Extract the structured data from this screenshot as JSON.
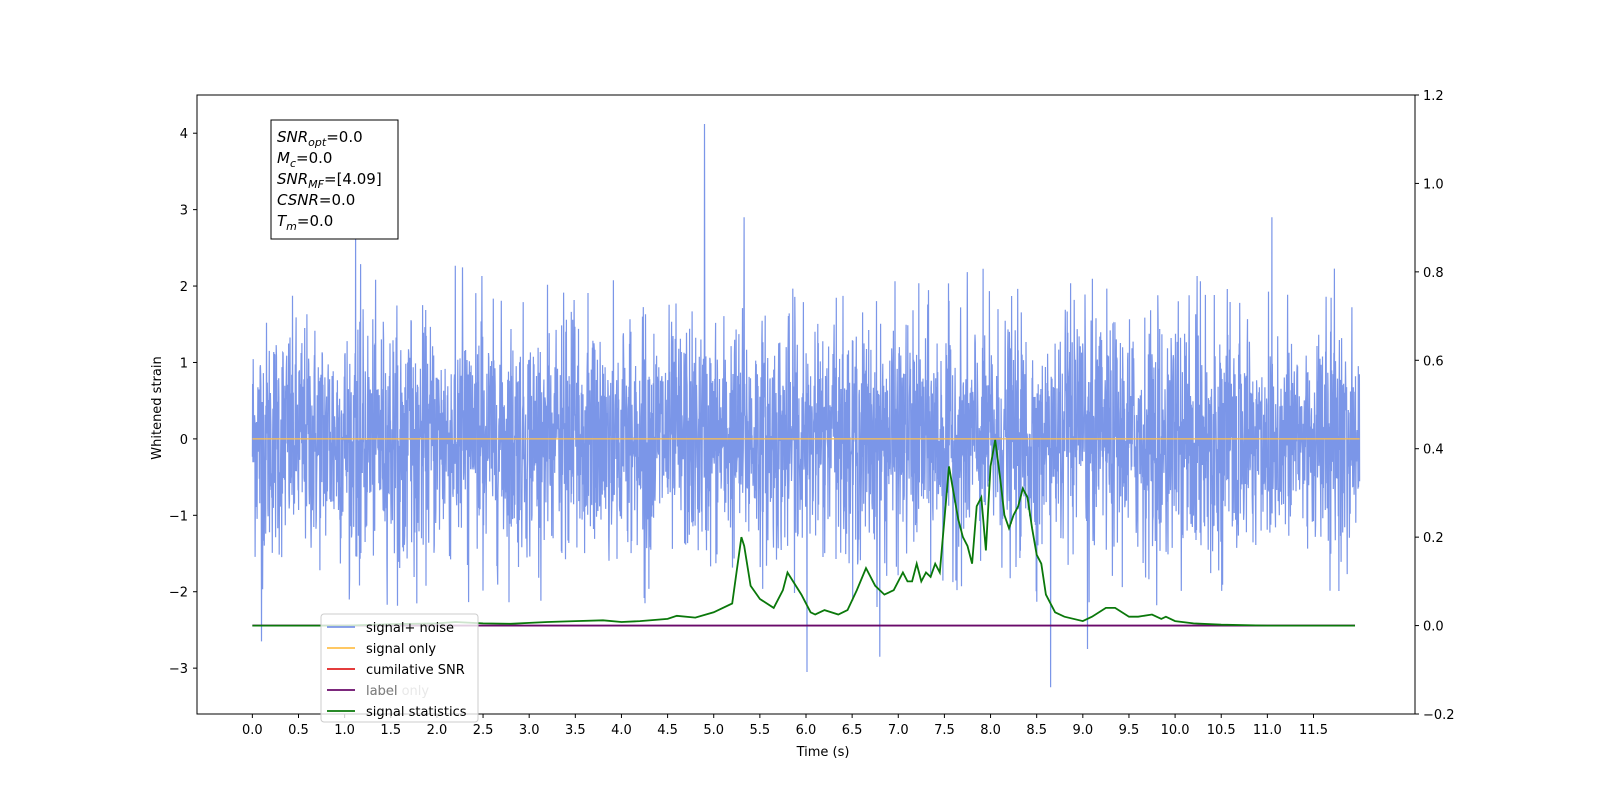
{
  "chart_data": {
    "type": "line",
    "xlabel": "Time (s)",
    "ylabel": "Whitened strain",
    "xlim": [
      -0.6,
      12.6
    ],
    "ylim": [
      -3.6,
      4.5
    ],
    "y2lim": [
      -0.2,
      1.2
    ],
    "xticks": [
      "0.0",
      "0.5",
      "1.0",
      "1.5",
      "2.0",
      "2.5",
      "3.0",
      "3.5",
      "4.0",
      "4.5",
      "5.0",
      "5.5",
      "6.0",
      "6.5",
      "7.0",
      "7.5",
      "8.0",
      "8.5",
      "9.0",
      "9.5",
      "10.0",
      "10.5",
      "11.0",
      "11.5"
    ],
    "yticks": [
      "−3",
      "−2",
      "−1",
      "0",
      "1",
      "2",
      "3",
      "4"
    ],
    "y2ticks": [
      "−0.2",
      "0.0",
      "0.2",
      "0.4",
      "0.6",
      "0.8",
      "1.0",
      "1.2"
    ],
    "colors": {
      "noise": "#7b96e8",
      "signal_only": "#ffc04d",
      "cumulative": "#e02020",
      "label": "#6a0a6a",
      "statistics": "#0a780a"
    },
    "noise": {
      "x_range": [
        0.0,
        12.0
      ],
      "rms": 0.75,
      "typical_max": 2.3,
      "typical_min": -2.2,
      "spikes": [
        [
          4.9,
          4.12
        ],
        [
          1.12,
          2.75
        ],
        [
          5.33,
          2.9
        ],
        [
          11.05,
          2.9
        ],
        [
          6.01,
          -3.05
        ],
        [
          8.65,
          -3.25
        ],
        [
          6.8,
          -2.85
        ],
        [
          9.05,
          -2.75
        ],
        [
          0.1,
          -2.65
        ]
      ]
    },
    "signal_only": {
      "x": [
        0.0,
        12.0
      ],
      "y": [
        0.0,
        0.0
      ]
    },
    "label": {
      "x": [
        0.0,
        11.95
      ],
      "y": [
        0.0,
        0.0
      ]
    },
    "statistics": {
      "x": [
        0.0,
        0.5,
        1.0,
        1.5,
        2.0,
        2.2,
        2.5,
        2.8,
        3.0,
        3.2,
        3.5,
        3.8,
        4.0,
        4.2,
        4.5,
        4.6,
        4.8,
        5.0,
        5.2,
        5.3,
        5.33,
        5.4,
        5.5,
        5.65,
        5.75,
        5.8,
        5.95,
        6.05,
        6.1,
        6.2,
        6.35,
        6.45,
        6.55,
        6.65,
        6.75,
        6.85,
        6.95,
        7.05,
        7.1,
        7.15,
        7.2,
        7.25,
        7.3,
        7.35,
        7.4,
        7.45,
        7.5,
        7.55,
        7.6,
        7.65,
        7.7,
        7.75,
        7.8,
        7.85,
        7.9,
        7.95,
        8.0,
        8.05,
        8.1,
        8.15,
        8.2,
        8.25,
        8.3,
        8.35,
        8.4,
        8.45,
        8.5,
        8.55,
        8.6,
        8.7,
        8.8,
        9.0,
        9.1,
        9.25,
        9.35,
        9.5,
        9.6,
        9.75,
        9.85,
        9.9,
        10.0,
        10.2,
        10.5,
        11.0,
        11.5,
        11.95
      ],
      "y": [
        0.0,
        0.0,
        0.0,
        0.003,
        0.005,
        0.008,
        0.005,
        0.004,
        0.006,
        0.008,
        0.01,
        0.012,
        0.008,
        0.01,
        0.015,
        0.022,
        0.018,
        0.03,
        0.05,
        0.2,
        0.18,
        0.09,
        0.06,
        0.04,
        0.08,
        0.12,
        0.07,
        0.03,
        0.025,
        0.035,
        0.025,
        0.035,
        0.08,
        0.13,
        0.09,
        0.07,
        0.08,
        0.12,
        0.1,
        0.1,
        0.14,
        0.1,
        0.12,
        0.11,
        0.14,
        0.12,
        0.24,
        0.36,
        0.3,
        0.24,
        0.2,
        0.18,
        0.14,
        0.27,
        0.29,
        0.17,
        0.36,
        0.42,
        0.34,
        0.25,
        0.22,
        0.25,
        0.27,
        0.31,
        0.29,
        0.22,
        0.16,
        0.14,
        0.07,
        0.03,
        0.02,
        0.01,
        0.02,
        0.04,
        0.04,
        0.02,
        0.02,
        0.025,
        0.015,
        0.02,
        0.01,
        0.005,
        0.002,
        0.0,
        0.0,
        0.0
      ]
    },
    "infobox": [
      {
        "sym": "SNR",
        "sub": "opt",
        "val": "=0.0"
      },
      {
        "sym": "M",
        "sub": "c",
        "val": "=0.0"
      },
      {
        "sym": "SNR",
        "sub": "MF",
        "val": "=[4.09]"
      },
      {
        "sym": "CSNR",
        "sub": "",
        "val": "=0.0"
      },
      {
        "sym": "T",
        "sub": "m",
        "val": "=0.0"
      }
    ],
    "legend": {
      "placement": "lower-left",
      "entries": [
        {
          "name": "signal+ noise",
          "color": "#7b96e8"
        },
        {
          "name": "signal only",
          "color": "#ffc04d"
        },
        {
          "name": "cumilative SNR",
          "color": "#e02020"
        },
        {
          "name": "label",
          "color": "#6a0a6a"
        },
        {
          "name": "signal statistics",
          "color": "#0a780a"
        }
      ],
      "hidden_text": [
        "label only"
      ]
    }
  }
}
